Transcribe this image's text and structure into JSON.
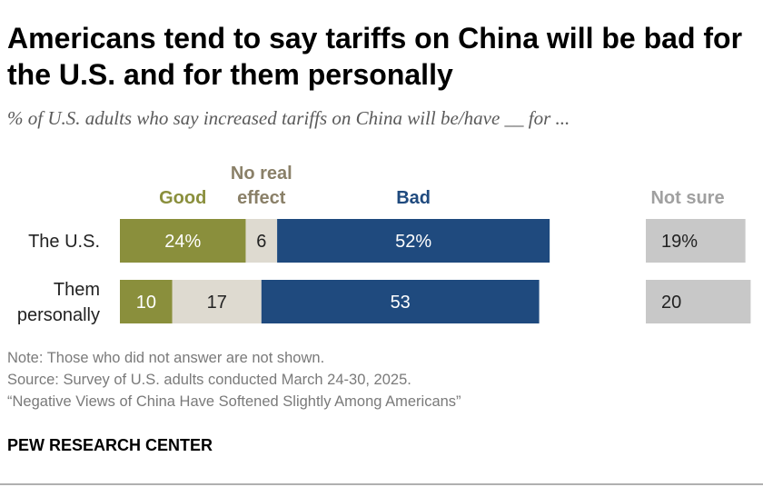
{
  "title": "Americans tend to say tariffs on China will be bad for the U.S. and for them personally",
  "subtitle": "% of U.S. adults who say increased tariffs on China will be/have __ for ...",
  "chart_data": {
    "type": "bar",
    "orientation": "horizontal-stacked",
    "categories": [
      [
        "The U.S."
      ],
      [
        "Them",
        "personally"
      ]
    ],
    "series": [
      {
        "name": "Good",
        "values": [
          24,
          10
        ],
        "labels": [
          "24%",
          "10"
        ],
        "color": "#8a8f3c",
        "label_color": "#ffffff"
      },
      {
        "name": "No real effect",
        "legend_lines": [
          "No real",
          "effect"
        ],
        "values": [
          6,
          17
        ],
        "labels": [
          "6",
          "17"
        ],
        "color": "#dedad0",
        "label_color": "#222222"
      },
      {
        "name": "Bad",
        "values": [
          52,
          53
        ],
        "labels": [
          "52%",
          "53"
        ],
        "color": "#1f4a7e",
        "label_color": "#ffffff"
      }
    ],
    "separate_series": {
      "name": "Not sure",
      "values": [
        19,
        20
      ],
      "labels": [
        "19%",
        "20"
      ],
      "color": "#c8c8c8",
      "label_color": "#222222"
    },
    "legend_colors": {
      "Good": "#8a8f3c",
      "No real effect": "#8a8068",
      "Bad": "#1f4a7e",
      "Not sure": "#a0a0a0"
    },
    "xlim": [
      0,
      100
    ]
  },
  "footer": {
    "note": "Note: Those who did not answer are not shown.",
    "source": "Source: Survey of U.S. adults conducted March 24-30, 2025.",
    "report": "“Negative Views of China Have Softened Slightly Among Americans”"
  },
  "brand": "PEW RESEARCH CENTER"
}
